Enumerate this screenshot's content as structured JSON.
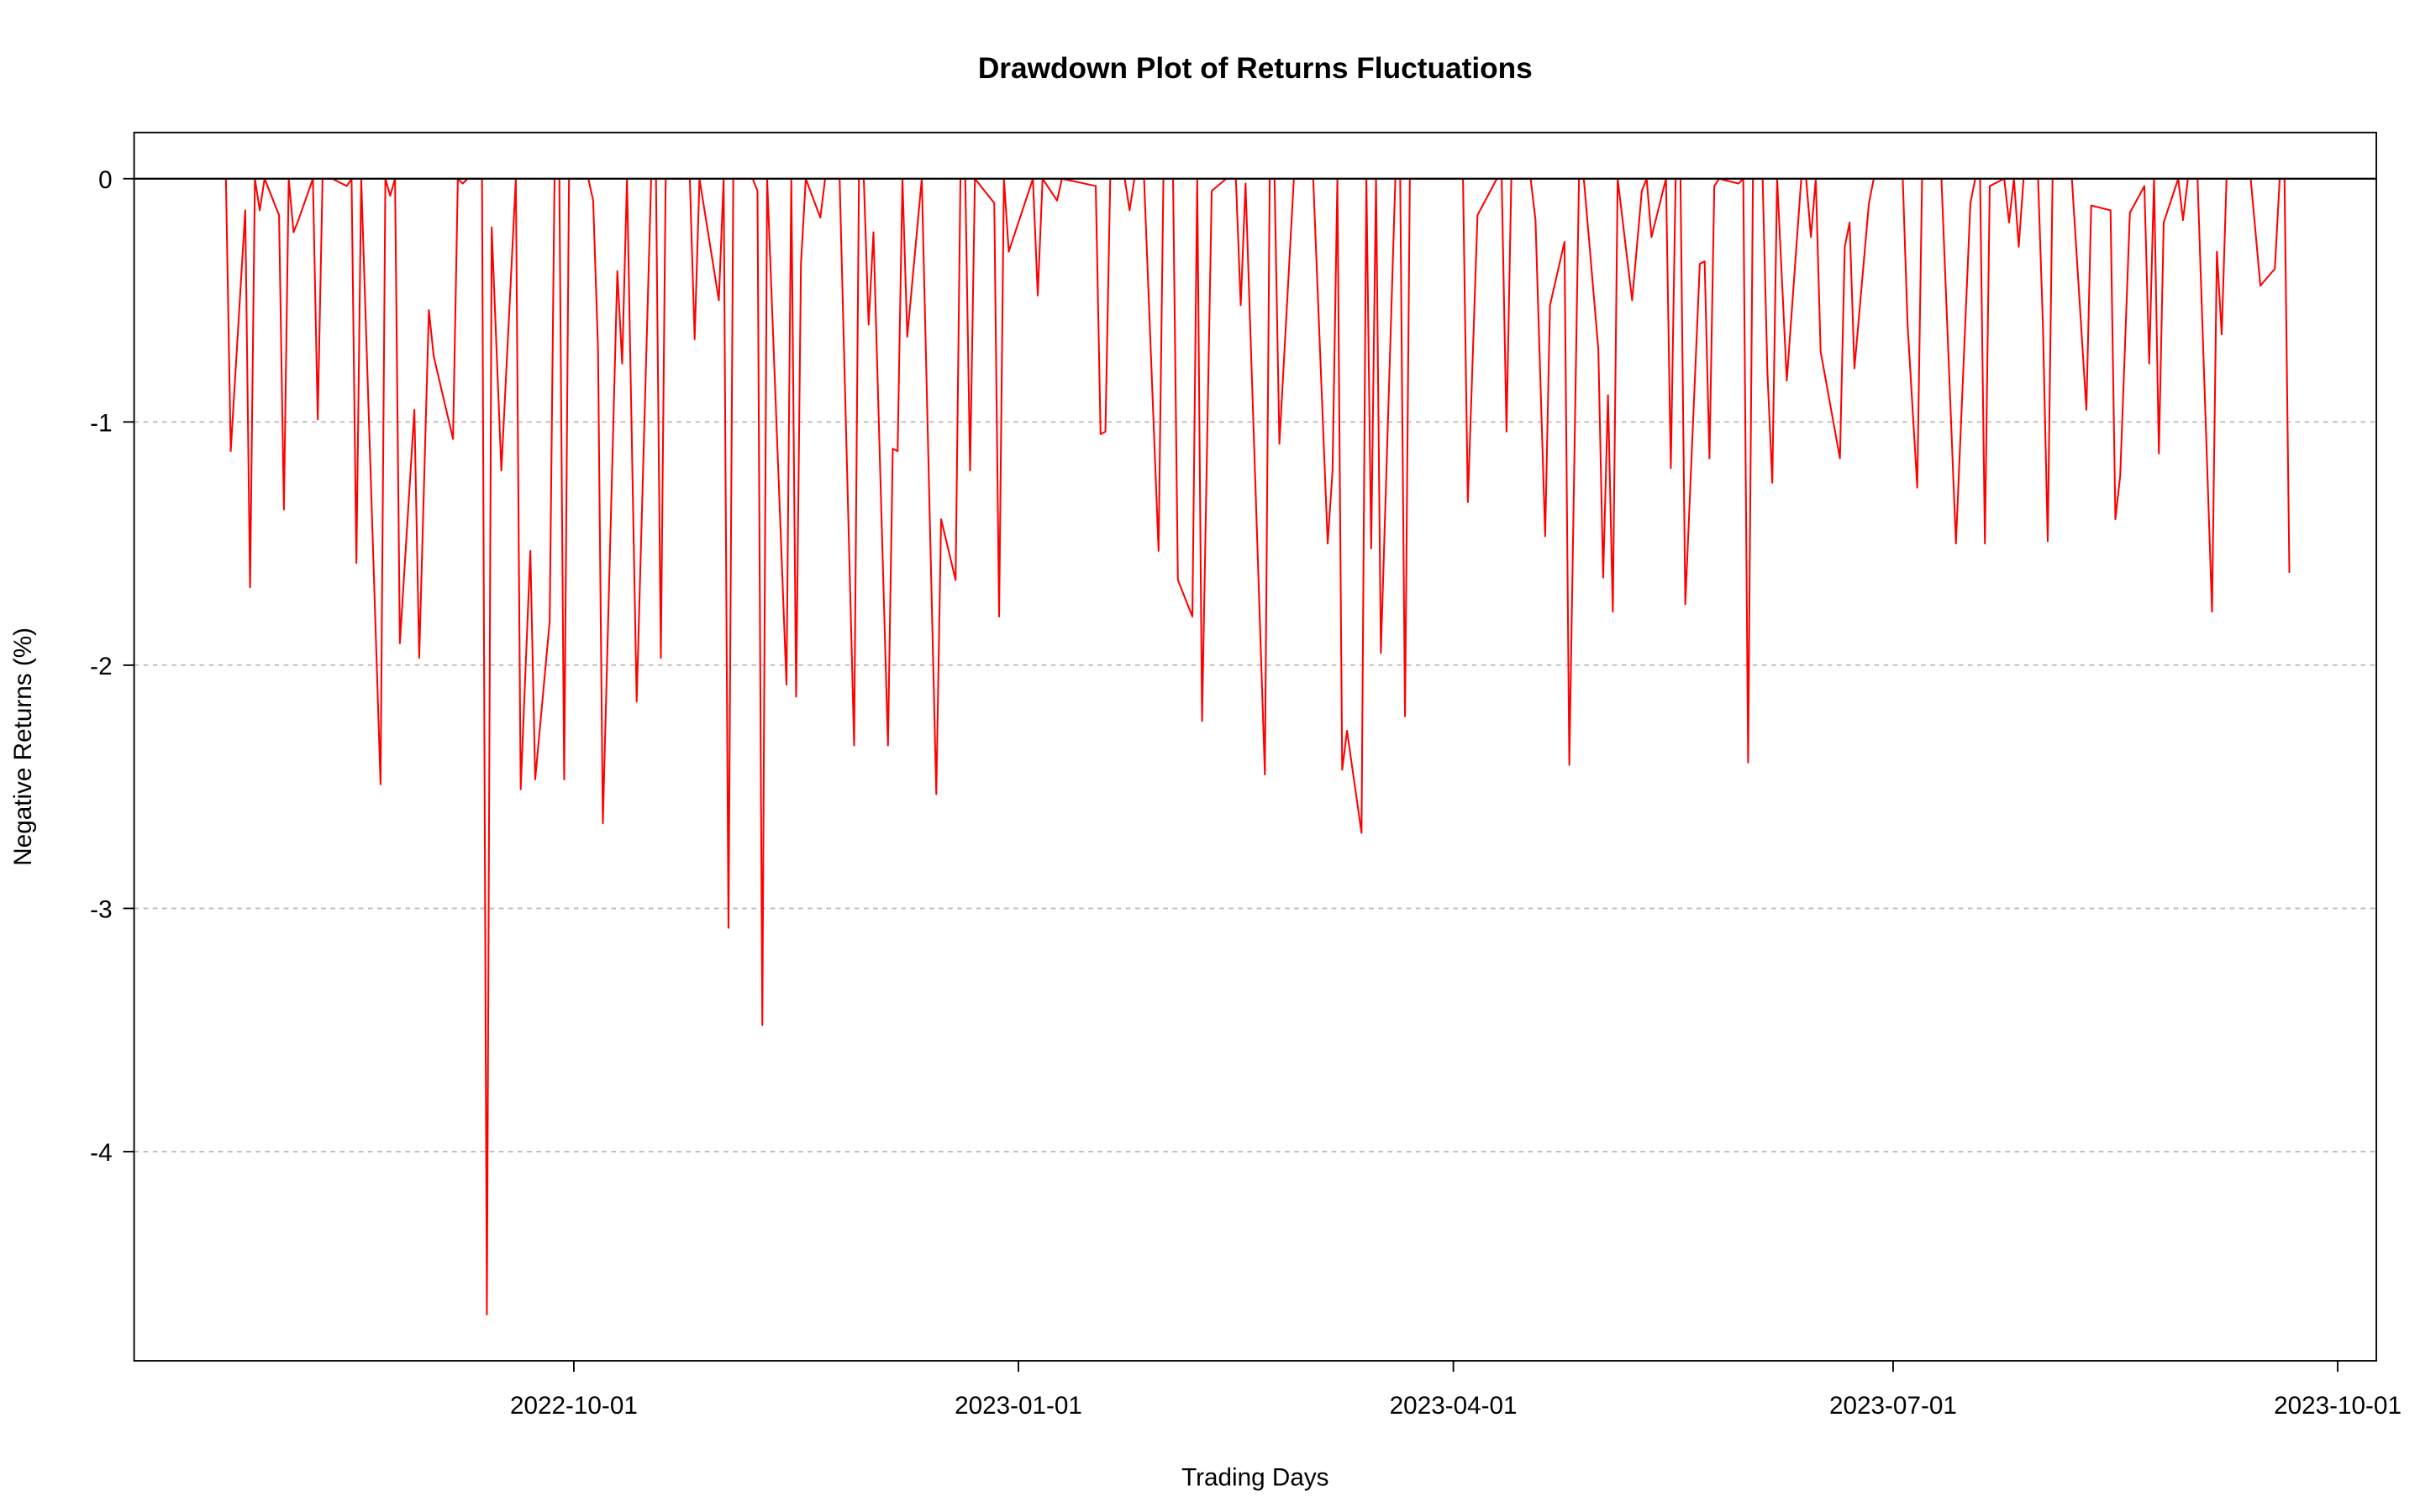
{
  "chart_data": {
    "type": "line",
    "title": "Drawdown Plot of Returns Fluctuations",
    "xlabel": "Trading Days",
    "ylabel": "Negative Returns (%)",
    "color": "#ff0000",
    "grid": true,
    "xlim": [
      "2022-07-02",
      "2023-10-09"
    ],
    "xticks": [
      "2022-10-01",
      "2023-01-01",
      "2023-04-01",
      "2023-07-01",
      "2023-10-01"
    ],
    "ylim": [
      -4.86,
      0.19
    ],
    "yticks": [
      -4,
      -3,
      -2,
      -1,
      0
    ],
    "x": [
      "2022-07-21",
      "2022-07-22",
      "2022-07-25",
      "2022-07-26",
      "2022-07-27",
      "2022-07-28",
      "2022-07-29",
      "2022-08-01",
      "2022-08-02",
      "2022-08-03",
      "2022-08-04",
      "2022-08-05",
      "2022-08-08",
      "2022-08-09",
      "2022-08-10",
      "2022-08-12",
      "2022-08-15",
      "2022-08-16",
      "2022-08-17",
      "2022-08-18",
      "2022-08-22",
      "2022-08-23",
      "2022-08-24",
      "2022-08-25",
      "2022-08-26",
      "2022-08-29",
      "2022-08-30",
      "2022-09-01",
      "2022-09-02",
      "2022-09-06",
      "2022-09-07",
      "2022-09-08",
      "2022-09-09",
      "2022-09-12",
      "2022-09-13",
      "2022-09-14",
      "2022-09-16",
      "2022-09-19",
      "2022-09-20",
      "2022-09-22",
      "2022-09-23",
      "2022-09-26",
      "2022-09-27",
      "2022-09-28",
      "2022-09-29",
      "2022-09-30",
      "2022-10-04",
      "2022-10-05",
      "2022-10-06",
      "2022-10-07",
      "2022-10-10",
      "2022-10-11",
      "2022-10-12",
      "2022-10-14",
      "2022-10-17",
      "2022-10-18",
      "2022-10-19",
      "2022-10-20",
      "2022-10-25",
      "2022-10-26",
      "2022-10-27",
      "2022-10-31",
      "2022-11-01",
      "2022-11-02",
      "2022-11-03",
      "2022-11-07",
      "2022-11-08",
      "2022-11-09",
      "2022-11-10",
      "2022-11-14",
      "2022-11-15",
      "2022-11-16",
      "2022-11-17",
      "2022-11-18",
      "2022-11-21",
      "2022-11-22",
      "2022-11-25",
      "2022-11-28",
      "2022-11-29",
      "2022-11-30",
      "2022-12-01",
      "2022-12-02",
      "2022-12-05",
      "2022-12-06",
      "2022-12-07",
      "2022-12-08",
      "2022-12-09",
      "2022-12-12",
      "2022-12-15",
      "2022-12-16",
      "2022-12-19",
      "2022-12-20",
      "2022-12-21",
      "2022-12-22",
      "2022-12-23",
      "2022-12-27",
      "2022-12-28",
      "2022-12-29",
      "2022-12-30",
      "2023-01-04",
      "2023-01-05",
      "2023-01-06",
      "2023-01-09",
      "2023-01-10",
      "2023-01-17",
      "2023-01-18",
      "2023-01-19",
      "2023-01-20",
      "2023-01-23",
      "2023-01-24",
      "2023-01-25",
      "2023-01-27",
      "2023-01-30",
      "2023-01-31",
      "2023-02-02",
      "2023-02-03",
      "2023-02-06",
      "2023-02-07",
      "2023-02-08",
      "2023-02-10",
      "2023-02-13",
      "2023-02-15",
      "2023-02-16",
      "2023-02-17",
      "2023-02-21",
      "2023-02-22",
      "2023-02-23",
      "2023-02-24",
      "2023-02-27",
      "2023-03-01",
      "2023-03-03",
      "2023-03-06",
      "2023-03-07",
      "2023-03-08",
      "2023-03-09",
      "2023-03-10",
      "2023-03-13",
      "2023-03-14",
      "2023-03-15",
      "2023-03-16",
      "2023-03-17",
      "2023-03-20",
      "2023-03-21",
      "2023-03-22",
      "2023-03-23",
      "2023-03-24",
      "2023-04-03",
      "2023-04-04",
      "2023-04-06",
      "2023-04-10",
      "2023-04-11",
      "2023-04-12",
      "2023-04-13",
      "2023-04-17",
      "2023-04-18",
      "2023-04-20",
      "2023-04-21",
      "2023-04-24",
      "2023-04-25",
      "2023-04-27",
      "2023-04-28",
      "2023-05-01",
      "2023-05-02",
      "2023-05-03",
      "2023-05-04",
      "2023-05-05",
      "2023-05-08",
      "2023-05-10",
      "2023-05-11",
      "2023-05-12",
      "2023-05-15",
      "2023-05-16",
      "2023-05-17",
      "2023-05-18",
      "2023-05-19",
      "2023-05-22",
      "2023-05-23",
      "2023-05-24",
      "2023-05-25",
      "2023-05-26",
      "2023-05-30",
      "2023-05-31",
      "2023-06-01",
      "2023-06-02",
      "2023-06-04",
      "2023-06-05",
      "2023-06-06",
      "2023-06-07",
      "2023-06-09",
      "2023-06-12",
      "2023-06-13",
      "2023-06-14",
      "2023-06-15",
      "2023-06-16",
      "2023-06-20",
      "2023-06-21",
      "2023-06-22",
      "2023-06-23",
      "2023-06-26",
      "2023-06-27",
      "2023-07-03",
      "2023-07-04",
      "2023-07-06",
      "2023-07-07",
      "2023-07-11",
      "2023-07-14",
      "2023-07-17",
      "2023-07-18",
      "2023-07-19",
      "2023-07-20",
      "2023-07-21",
      "2023-07-24",
      "2023-07-25",
      "2023-07-26",
      "2023-07-27",
      "2023-07-28",
      "2023-07-31",
      "2023-08-01",
      "2023-08-02",
      "2023-08-03",
      "2023-08-07",
      "2023-08-10",
      "2023-08-11",
      "2023-08-15",
      "2023-08-16",
      "2023-08-17",
      "2023-08-19",
      "2023-08-22",
      "2023-08-23",
      "2023-08-24",
      "2023-08-25",
      "2023-08-26",
      "2023-08-29",
      "2023-08-30",
      "2023-08-31",
      "2023-09-01",
      "2023-09-02",
      "2023-09-05",
      "2023-09-06",
      "2023-09-07",
      "2023-09-08",
      "2023-09-13",
      "2023-09-15",
      "2023-09-18",
      "2023-09-19",
      "2023-09-20",
      "2023-09-21"
    ],
    "values": [
      0,
      -1.12,
      -0.13,
      -1.68,
      0,
      -0.13,
      0,
      -0.15,
      -1.36,
      0,
      -0.22,
      -0.17,
      0,
      -0.99,
      0,
      0,
      -0.03,
      0,
      -1.58,
      0,
      -2.49,
      0,
      -0.07,
      0,
      -1.91,
      -0.95,
      -1.97,
      -0.54,
      -0.73,
      -1.07,
      0,
      -0.02,
      0,
      0,
      -4.67,
      -0.2,
      -1.2,
      0,
      -2.51,
      -1.53,
      -2.47,
      -1.82,
      0,
      0,
      -2.47,
      0,
      0,
      -0.09,
      -0.7,
      -2.65,
      -0.38,
      -0.76,
      0,
      -2.15,
      0,
      0,
      -1.97,
      0,
      0,
      -0.66,
      0,
      -0.5,
      0,
      -3.08,
      0,
      0,
      -0.05,
      -3.48,
      0,
      -2.08,
      0,
      -2.13,
      -0.35,
      0,
      -0.16,
      0,
      0,
      -2.33,
      0,
      0,
      -0.6,
      -0.22,
      -2.33,
      -1.11,
      -1.12,
      0,
      -0.65,
      0,
      -2.53,
      -1.4,
      -1.65,
      0,
      0,
      -1.2,
      0,
      -0.1,
      -1.8,
      0,
      -0.3,
      0,
      -0.48,
      0,
      -0.09,
      0,
      -0.03,
      -1.05,
      -1.04,
      0,
      0,
      -0.13,
      0,
      0,
      -1.53,
      0,
      0,
      -1.65,
      -1.8,
      0,
      -2.23,
      -0.05,
      0,
      0,
      -0.52,
      -0.02,
      -2.45,
      0,
      0,
      -1.09,
      0,
      0,
      0,
      -1.5,
      -1.2,
      0,
      -2.43,
      -2.27,
      -2.69,
      0,
      -1.52,
      0,
      -1.95,
      0,
      0,
      -2.21,
      0,
      0,
      0,
      -1.33,
      -0.15,
      0,
      0,
      -1.04,
      0,
      0,
      -0.17,
      -1.47,
      -0.52,
      -0.26,
      -2.41,
      0,
      0,
      -0.7,
      -1.64,
      -0.89,
      -1.78,
      0,
      -0.5,
      -0.05,
      0,
      -0.24,
      0,
      -1.19,
      0,
      0,
      -1.75,
      -0.35,
      -0.34,
      -1.15,
      -0.03,
      0,
      -0.02,
      0,
      -2.4,
      0,
      0,
      -0.8,
      -1.25,
      0,
      -0.83,
      0,
      0,
      -0.24,
      0,
      -0.71,
      -1.15,
      -0.28,
      -0.18,
      -0.78,
      -0.1,
      0,
      0,
      -0.6,
      -1.27,
      0,
      0,
      -1.5,
      -0.1,
      0,
      0,
      -1.5,
      -0.03,
      0,
      -0.18,
      0,
      -0.28,
      0,
      0,
      -0.6,
      -1.49,
      0,
      0,
      -0.95,
      -0.11,
      -0.13,
      -1.4,
      -1.22,
      -0.14,
      -0.03,
      -0.76,
      0,
      -1.13,
      -0.18,
      0,
      -0.17,
      0,
      0,
      0,
      -1.78,
      -0.3,
      -0.64,
      0,
      0,
      -0.44,
      -0.37,
      0,
      0,
      -1.62
    ]
  }
}
